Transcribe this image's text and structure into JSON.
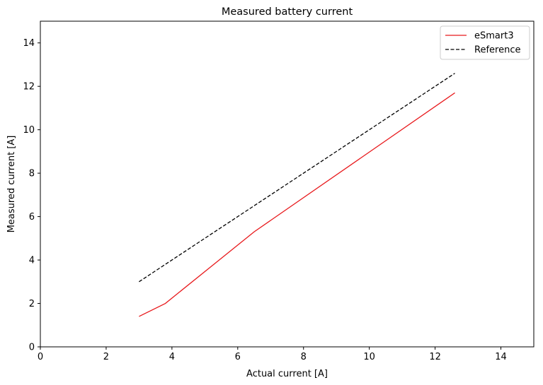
{
  "chart_data": {
    "type": "line",
    "title": "Measured battery current",
    "xlabel": "Actual current [A]",
    "ylabel": "Measured current [A]",
    "xlim": [
      0,
      15
    ],
    "ylim": [
      0,
      15
    ],
    "xticks": [
      0,
      2,
      4,
      6,
      8,
      10,
      12,
      14
    ],
    "yticks": [
      0,
      2,
      4,
      6,
      8,
      10,
      12,
      14
    ],
    "grid": false,
    "legend_position": "top-right",
    "series": [
      {
        "name": "eSmart3",
        "color": "#e8191c",
        "style": "solid",
        "x": [
          3.0,
          3.8,
          6.5,
          12.6
        ],
        "y": [
          1.4,
          2.0,
          5.3,
          11.7
        ]
      },
      {
        "name": "Reference",
        "color": "#000000",
        "style": "dashed",
        "x": [
          3.0,
          12.6
        ],
        "y": [
          3.0,
          12.6
        ]
      }
    ]
  }
}
